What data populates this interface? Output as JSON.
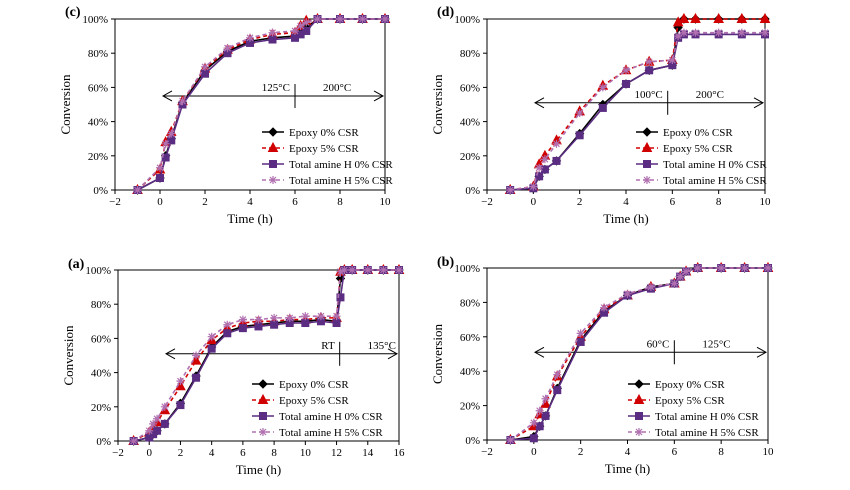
{
  "chart_data": [
    {
      "type": "line",
      "panel_label": "(c)",
      "xlabel": "Time (h)",
      "ylabel": "Conversion",
      "xlim": [
        -2,
        10
      ],
      "ylim": [
        0,
        100
      ],
      "xticks": [
        "−2",
        "0",
        "2",
        "4",
        "6",
        "8",
        "10"
      ],
      "yticks": [
        "0%",
        "20%",
        "40%",
        "60%",
        "80%",
        "100%"
      ],
      "annotations": {
        "left": "125°C",
        "right": "200°C",
        "split_x": 6,
        "arrow_y": 55,
        "arrow_x": [
          -2,
          10
        ]
      },
      "legend_position": "lower-right",
      "series": [
        {
          "name": "Epoxy 0% CSR",
          "color": "#000000",
          "marker": "diamond",
          "dash": "solid",
          "x": [
            -1,
            0,
            0.25,
            0.5,
            1,
            2,
            3,
            4,
            5,
            6,
            6.25,
            6.5,
            7,
            8,
            9,
            10
          ],
          "y": [
            0,
            7,
            20,
            30,
            51,
            70,
            81,
            87,
            89,
            90,
            93,
            95,
            100,
            100,
            100,
            100
          ]
        },
        {
          "name": "Epoxy 5% CSR",
          "color": "#d00000",
          "marker": "triangle",
          "dash": "dashed",
          "x": [
            -1,
            0,
            0.25,
            0.5,
            1,
            2,
            3,
            4,
            5,
            6,
            6.25,
            6.5,
            7,
            8,
            9,
            10
          ],
          "y": [
            0,
            12,
            28,
            34,
            52,
            71,
            82,
            88,
            91,
            92,
            96,
            99,
            100,
            100,
            100,
            100
          ]
        },
        {
          "name": "Total amine H 0% CSR",
          "color": "#5a2d82",
          "marker": "square",
          "dash": "solid",
          "x": [
            -1,
            0,
            0.25,
            0.5,
            1,
            2,
            3,
            4,
            5,
            6,
            6.25,
            6.5,
            7,
            8,
            9,
            10
          ],
          "y": [
            0,
            7,
            19,
            29,
            50,
            68,
            80,
            86,
            88,
            89,
            91,
            93,
            100,
            100,
            100,
            100
          ]
        },
        {
          "name": "Total amine H 5% CSR",
          "color": "#b070b0",
          "marker": "star",
          "dash": "dashed",
          "x": [
            -1,
            0,
            0.25,
            0.5,
            1,
            2,
            3,
            4,
            5,
            6,
            6.25,
            6.5,
            7,
            8,
            9,
            10
          ],
          "y": [
            0,
            13,
            27,
            33,
            52,
            72,
            83,
            89,
            92,
            93,
            96,
            98,
            100,
            100,
            100,
            100
          ]
        }
      ]
    },
    {
      "type": "line",
      "panel_label": "(d)",
      "xlabel": "Time (h)",
      "ylabel": "Conversion",
      "xlim": [
        -2,
        10
      ],
      "ylim": [
        0,
        100
      ],
      "xticks": [
        "−2",
        "0",
        "2",
        "4",
        "6",
        "8",
        "10"
      ],
      "yticks": [
        "0%",
        "20%",
        "40%",
        "60%",
        "80%",
        "100%"
      ],
      "annotations": {
        "left": "100°C",
        "right": "200°C",
        "split_x": 5.8,
        "arrow_y": 51,
        "arrow_x": [
          -2,
          10
        ]
      },
      "legend_position": "lower-right",
      "series": [
        {
          "name": "Epoxy 0% CSR",
          "color": "#000000",
          "marker": "diamond",
          "dash": "solid",
          "x": [
            -1,
            0,
            0.25,
            0.5,
            1,
            2,
            3,
            4,
            5,
            6,
            6.25,
            6.5,
            7,
            8,
            9,
            10
          ],
          "y": [
            0,
            1,
            8,
            12,
            17,
            33,
            50,
            62,
            70,
            73,
            95,
            100,
            100,
            100,
            100,
            100
          ]
        },
        {
          "name": "Epoxy 5% CSR",
          "color": "#d00000",
          "marker": "triangle",
          "dash": "dashed",
          "x": [
            -1,
            0,
            0.25,
            0.5,
            1,
            2,
            3,
            4,
            5,
            6,
            6.25,
            6.5,
            7,
            8,
            9,
            10
          ],
          "y": [
            0,
            2,
            15,
            20,
            29,
            46,
            61,
            70,
            75,
            76,
            98,
            100,
            100,
            100,
            100,
            100
          ]
        },
        {
          "name": "Total amine H 0% CSR",
          "color": "#5a2d82",
          "marker": "square",
          "dash": "solid",
          "x": [
            -1,
            0,
            0.25,
            0.5,
            1,
            2,
            3,
            4,
            5,
            6,
            6.25,
            6.5,
            7,
            8,
            9,
            10
          ],
          "y": [
            0,
            1,
            8,
            12,
            17,
            32,
            48,
            62,
            70,
            73,
            89,
            91,
            91,
            91,
            91,
            91
          ]
        },
        {
          "name": "Total amine H 5% CSR",
          "color": "#b070b0",
          "marker": "star",
          "dash": "dashed",
          "x": [
            -1,
            0,
            0.25,
            0.5,
            1,
            2,
            3,
            4,
            5,
            6,
            6.25,
            6.5,
            7,
            8,
            9,
            10
          ],
          "y": [
            0,
            2,
            13,
            18,
            27,
            45,
            60,
            70,
            75,
            76,
            90,
            92,
            92,
            92,
            92,
            92
          ]
        }
      ]
    },
    {
      "type": "line",
      "panel_label": "(a)",
      "xlabel": "Time (h)",
      "ylabel": "Conversion",
      "xlim": [
        -2,
        16
      ],
      "ylim": [
        0,
        100
      ],
      "xticks": [
        "−2",
        "0",
        "2",
        "4",
        "6",
        "8",
        "10",
        "12",
        "14",
        "16"
      ],
      "yticks": [
        "0%",
        "20%",
        "40%",
        "60%",
        "80%",
        "100%"
      ],
      "annotations": {
        "left": "RT",
        "right": "135°C",
        "split_x": 12.2,
        "arrow_y": 51,
        "arrow_x": [
          -2,
          16
        ]
      },
      "legend_position": "lower-right",
      "series": [
        {
          "name": "Epoxy 0% CSR",
          "color": "#000000",
          "marker": "diamond",
          "dash": "solid",
          "x": [
            -1,
            0,
            0.25,
            0.5,
            1,
            2,
            3,
            4,
            5,
            6,
            7,
            8,
            9,
            10,
            11,
            12,
            12.25,
            12.5,
            13,
            14,
            15,
            16
          ],
          "y": [
            0,
            2,
            4,
            6,
            10,
            22,
            38,
            55,
            64,
            67,
            68,
            69,
            70,
            70,
            71,
            70,
            95,
            100,
            100,
            100,
            100,
            100
          ]
        },
        {
          "name": "Epoxy 5% CSR",
          "color": "#d00000",
          "marker": "triangle",
          "dash": "dashed",
          "x": [
            -1,
            0,
            0.25,
            0.5,
            1,
            2,
            3,
            4,
            5,
            6,
            7,
            8,
            9,
            10,
            11,
            12,
            12.25,
            12.5,
            13,
            14,
            15,
            16
          ],
          "y": [
            0,
            5,
            8,
            11,
            18,
            32,
            47,
            59,
            66,
            69,
            70,
            70,
            71,
            71,
            72,
            72,
            99,
            100,
            100,
            100,
            100,
            100
          ]
        },
        {
          "name": "Total amine H 0% CSR",
          "color": "#5a2d82",
          "marker": "square",
          "dash": "solid",
          "x": [
            -1,
            0,
            0.25,
            0.5,
            1,
            2,
            3,
            4,
            5,
            6,
            7,
            8,
            9,
            10,
            11,
            12,
            12.25,
            12.5,
            13,
            14,
            15,
            16
          ],
          "y": [
            0,
            2,
            4,
            6,
            10,
            21,
            37,
            54,
            63,
            66,
            67,
            68,
            69,
            69,
            70,
            69,
            84,
            100,
            100,
            100,
            100,
            100
          ]
        },
        {
          "name": "Total amine H 5% CSR",
          "color": "#b070b0",
          "marker": "star",
          "dash": "dashed",
          "x": [
            -1,
            0,
            0.25,
            0.5,
            1,
            2,
            3,
            4,
            5,
            6,
            7,
            8,
            9,
            10,
            11,
            12,
            12.25,
            12.5,
            13,
            14,
            15,
            16
          ],
          "y": [
            0,
            6,
            10,
            13,
            20,
            35,
            50,
            61,
            68,
            71,
            71,
            72,
            72,
            73,
            73,
            73,
            99,
            100,
            100,
            100,
            100,
            100
          ]
        }
      ]
    },
    {
      "type": "line",
      "panel_label": "(b)",
      "xlabel": "Time (h)",
      "ylabel": "Conversion",
      "xlim": [
        -2,
        10
      ],
      "ylim": [
        0,
        100
      ],
      "xticks": [
        "−2",
        "0",
        "2",
        "4",
        "6",
        "8",
        "10"
      ],
      "yticks": [
        "0%",
        "20%",
        "40%",
        "60%",
        "80%",
        "100%"
      ],
      "annotations": {
        "left": "60°C",
        "right": "125°C",
        "split_x": 6,
        "arrow_y": 51,
        "arrow_x": [
          -2,
          10
        ]
      },
      "legend_position": "lower-right",
      "series": [
        {
          "name": "Epoxy 0% CSR",
          "color": "#000000",
          "marker": "diamond",
          "dash": "solid",
          "x": [
            -1,
            0,
            0.25,
            0.5,
            1,
            2,
            3,
            4,
            5,
            6,
            6.25,
            6.5,
            7,
            8,
            9,
            10
          ],
          "y": [
            0,
            2,
            8,
            14,
            30,
            58,
            75,
            84,
            89,
            91,
            95,
            98,
            100,
            100,
            100,
            100
          ]
        },
        {
          "name": "Epoxy 5% CSR",
          "color": "#d00000",
          "marker": "triangle",
          "dash": "dashed",
          "x": [
            -1,
            0,
            0.25,
            0.5,
            1,
            2,
            3,
            4,
            5,
            6,
            6.25,
            6.5,
            7,
            8,
            9,
            10
          ],
          "y": [
            0,
            8,
            15,
            21,
            37,
            60,
            76,
            84,
            89,
            91,
            95,
            98,
            100,
            100,
            100,
            100
          ]
        },
        {
          "name": "Total amine H 0% CSR",
          "color": "#5a2d82",
          "marker": "square",
          "dash": "solid",
          "x": [
            -1,
            0,
            0.25,
            0.5,
            1,
            2,
            3,
            4,
            5,
            6,
            6.25,
            6.5,
            7,
            8,
            9,
            10
          ],
          "y": [
            0,
            1,
            8,
            14,
            29,
            57,
            74,
            84,
            88,
            91,
            95,
            98,
            100,
            100,
            100,
            100
          ]
        },
        {
          "name": "Total amine H 5% CSR",
          "color": "#b070b0",
          "marker": "star",
          "dash": "dashed",
          "x": [
            -1,
            0,
            0.25,
            0.5,
            1,
            2,
            3,
            4,
            5,
            6,
            6.25,
            6.5,
            7,
            8,
            9,
            10
          ],
          "y": [
            0,
            10,
            17,
            24,
            38,
            62,
            77,
            85,
            89,
            91,
            95,
            98,
            100,
            100,
            100,
            100
          ]
        }
      ]
    }
  ]
}
